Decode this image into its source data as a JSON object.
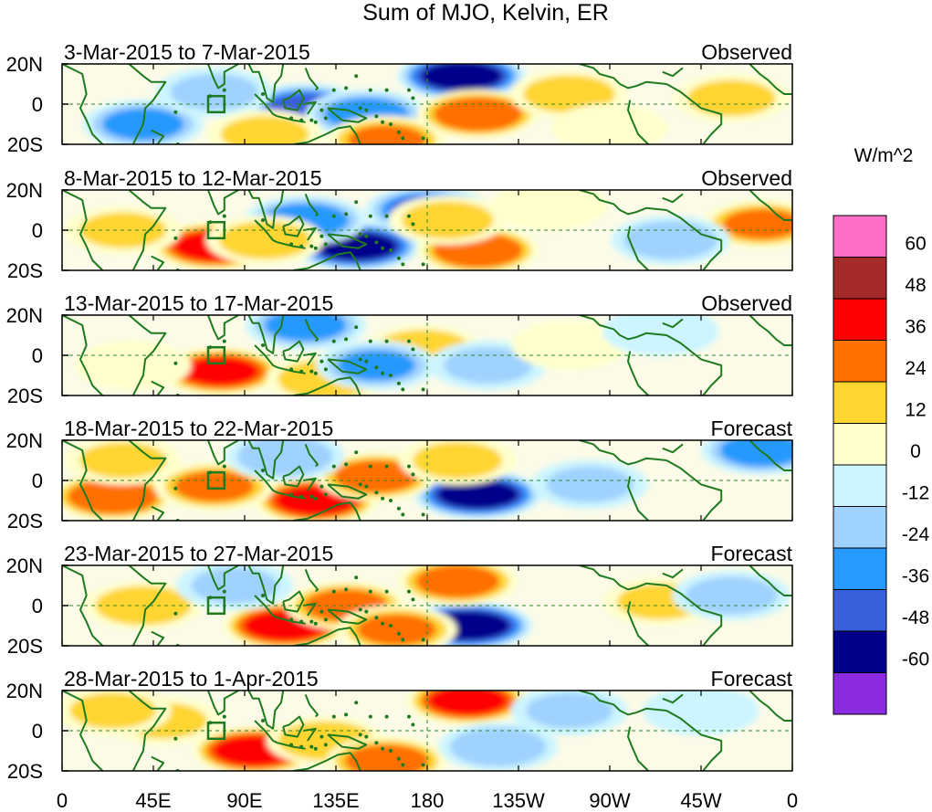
{
  "chart_data": {
    "type": "heatmap",
    "title": "Sum of MJO, Kelvin, ER",
    "units_label": "W/m^2",
    "x_ticks": [
      "0",
      "45E",
      "90E",
      "135E",
      "180",
      "135W",
      "90W",
      "45W",
      "0"
    ],
    "x_range_deg_east": [
      0,
      360
    ],
    "y_ticks": [
      "20N",
      "0",
      "20S"
    ],
    "y_range_deg": [
      -20,
      20
    ],
    "colorbar": {
      "labels": [
        "60",
        "48",
        "36",
        "24",
        "12",
        "0",
        "-12",
        "-24",
        "-36",
        "-48",
        "-60"
      ],
      "colors": [
        "#ff6ec7",
        "#a52a2a",
        "#ff0000",
        "#ff7000",
        "#ffd530",
        "#ffffcc",
        "#ccf5ff",
        "#a0d2ff",
        "#2899ff",
        "#3a5fdc",
        "#00008b",
        "#8a2be2"
      ]
    },
    "panels": [
      {
        "period": "3-Mar-2015 to 7-Mar-2015",
        "kind": "Observed",
        "anomalies": [
          {
            "lon": 197,
            "lat": 14,
            "value": -55
          },
          {
            "lon": 120,
            "lat": -2,
            "value": -40
          },
          {
            "lon": 150,
            "lat": -5,
            "value": -30
          },
          {
            "lon": 40,
            "lat": -10,
            "value": -28
          },
          {
            "lon": 75,
            "lat": 6,
            "value": -15
          },
          {
            "lon": 205,
            "lat": -5,
            "value": 34
          },
          {
            "lon": 250,
            "lat": 5,
            "value": 18
          },
          {
            "lon": 100,
            "lat": -15,
            "value": 15
          },
          {
            "lon": 160,
            "lat": -18,
            "value": 25
          },
          {
            "lon": 330,
            "lat": 3,
            "value": 15
          },
          {
            "lon": 270,
            "lat": -12,
            "value": 12
          }
        ]
      },
      {
        "period": "8-Mar-2015 to 12-Mar-2015",
        "kind": "Observed",
        "anomalies": [
          {
            "lon": 145,
            "lat": -8,
            "value": -55
          },
          {
            "lon": 180,
            "lat": 10,
            "value": -38
          },
          {
            "lon": 120,
            "lat": 5,
            "value": -32
          },
          {
            "lon": 75,
            "lat": -8,
            "value": 42
          },
          {
            "lon": 100,
            "lat": -5,
            "value": 18
          },
          {
            "lon": 205,
            "lat": -10,
            "value": 35
          },
          {
            "lon": 190,
            "lat": 5,
            "value": 18
          },
          {
            "lon": 30,
            "lat": 0,
            "value": 14
          },
          {
            "lon": 345,
            "lat": 3,
            "value": 25
          },
          {
            "lon": 300,
            "lat": -5,
            "value": -20
          },
          {
            "lon": 240,
            "lat": 12,
            "value": 12
          }
        ]
      },
      {
        "period": "13-Mar-2015 to 17-Mar-2015",
        "kind": "Observed",
        "anomalies": [
          {
            "lon": 78,
            "lat": -8,
            "value": 38
          },
          {
            "lon": 130,
            "lat": -12,
            "value": 22
          },
          {
            "lon": 178,
            "lat": 3,
            "value": 22
          },
          {
            "lon": 120,
            "lat": 15,
            "value": -28
          },
          {
            "lon": 155,
            "lat": -5,
            "value": -25
          },
          {
            "lon": 210,
            "lat": -5,
            "value": -15
          },
          {
            "lon": 35,
            "lat": -5,
            "value": 12
          },
          {
            "lon": 250,
            "lat": 5,
            "value": 10
          },
          {
            "lon": 295,
            "lat": 12,
            "value": -12
          }
        ]
      },
      {
        "period": "18-Mar-2015 to 22-Mar-2015",
        "kind": "Forecast",
        "anomalies": [
          {
            "lon": 205,
            "lat": -7,
            "value": -55
          },
          {
            "lon": 125,
            "lat": -10,
            "value": 42
          },
          {
            "lon": 25,
            "lat": -8,
            "value": 36
          },
          {
            "lon": 75,
            "lat": -3,
            "value": 26
          },
          {
            "lon": 155,
            "lat": 2,
            "value": 30
          },
          {
            "lon": 195,
            "lat": 10,
            "value": 16
          },
          {
            "lon": 110,
            "lat": 12,
            "value": -22
          },
          {
            "lon": 345,
            "lat": 15,
            "value": -30
          },
          {
            "lon": 260,
            "lat": -2,
            "value": -14
          },
          {
            "lon": 30,
            "lat": 10,
            "value": 14
          }
        ]
      },
      {
        "period": "23-Mar-2015 to 27-Mar-2015",
        "kind": "Forecast",
        "anomalies": [
          {
            "lon": 200,
            "lat": -10,
            "value": -58
          },
          {
            "lon": 110,
            "lat": -10,
            "value": 44
          },
          {
            "lon": 140,
            "lat": 0,
            "value": 30
          },
          {
            "lon": 165,
            "lat": -12,
            "value": 26
          },
          {
            "lon": 195,
            "lat": 12,
            "value": 30
          },
          {
            "lon": 40,
            "lat": 0,
            "value": 22
          },
          {
            "lon": 85,
            "lat": 10,
            "value": -14
          },
          {
            "lon": 295,
            "lat": 2,
            "value": 14
          },
          {
            "lon": 330,
            "lat": 5,
            "value": -18
          }
        ]
      },
      {
        "period": "28-Mar-2015 to 1-Apr-2015",
        "kind": "Forecast",
        "anomalies": [
          {
            "lon": 200,
            "lat": 15,
            "value": 40
          },
          {
            "lon": 95,
            "lat": -10,
            "value": 44
          },
          {
            "lon": 130,
            "lat": -5,
            "value": 22
          },
          {
            "lon": 160,
            "lat": -15,
            "value": 30
          },
          {
            "lon": 215,
            "lat": -8,
            "value": -22
          },
          {
            "lon": 250,
            "lat": 10,
            "value": -14
          },
          {
            "lon": 50,
            "lat": 5,
            "value": 14
          },
          {
            "lon": 25,
            "lat": 10,
            "value": 14
          },
          {
            "lon": 315,
            "lat": 10,
            "value": -12
          }
        ]
      }
    ]
  }
}
